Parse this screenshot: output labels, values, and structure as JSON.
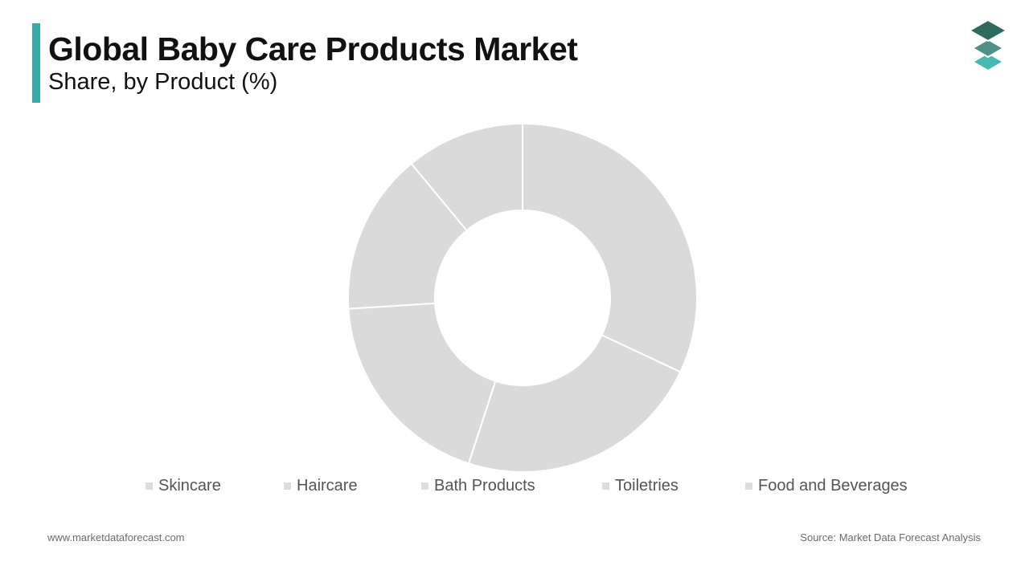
{
  "header": {
    "title": "Global Baby Care Products Market",
    "subtitle": "Share, by Product (%)",
    "accent_color": "#3aa8a4"
  },
  "logo": {
    "icon": "stacked-layers-icon",
    "colors": [
      "#2e6b5e",
      "#4f8f86",
      "#48b8b2"
    ]
  },
  "chart_data": {
    "type": "pie",
    "donut": true,
    "title": "",
    "categories": [
      "Skincare",
      "Haircare",
      "Bath Products",
      "Toiletries",
      "Food and Beverages"
    ],
    "values": [
      32,
      23,
      19,
      15,
      11
    ],
    "segment_color": "#dadada",
    "separator_color": "#ffffff",
    "legend_swatch_color": "#dddddd",
    "legend_placement": "bottom"
  },
  "footer": {
    "website": "www.marketdataforecast.com",
    "source": "Source: Market Data Forecast Analysis"
  }
}
